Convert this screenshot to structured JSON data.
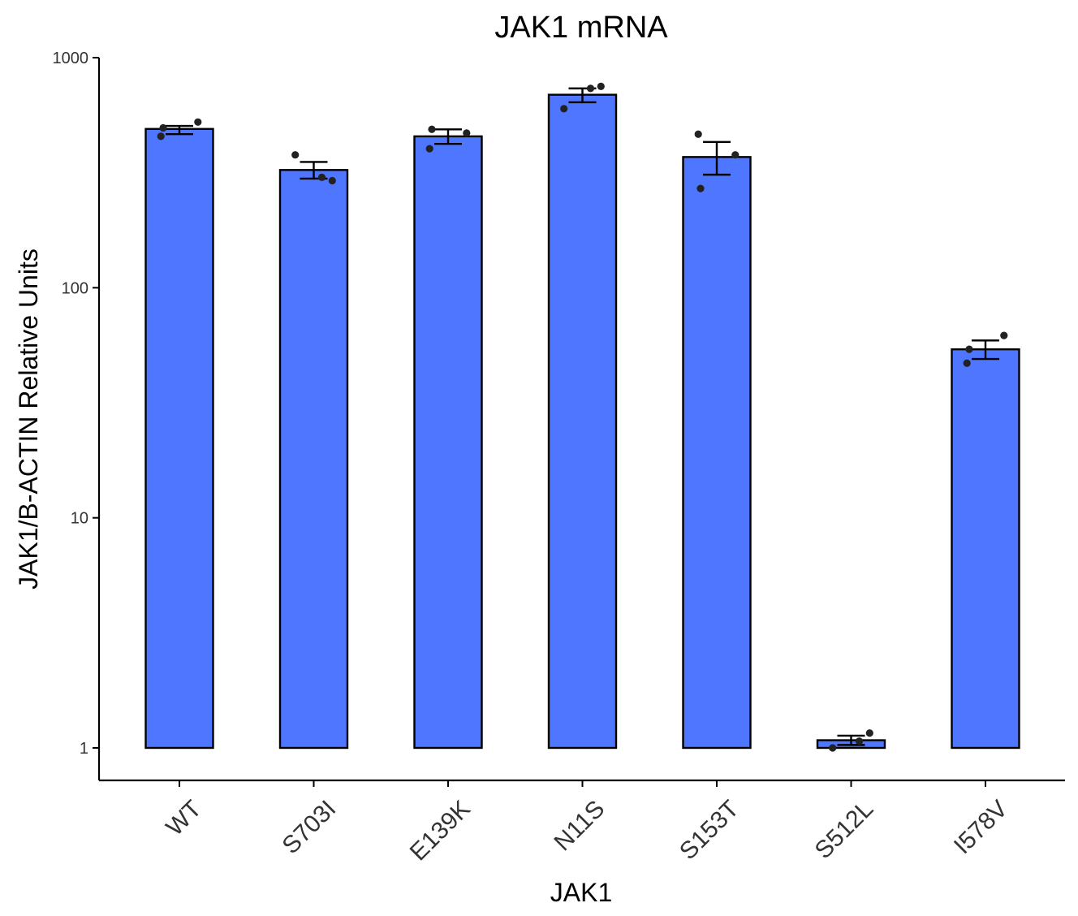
{
  "chart_data": {
    "type": "bar",
    "title": "JAK1 mRNA",
    "xlabel": "JAK1",
    "ylabel": "JAK1/B-ACTIN Relative Units",
    "yscale": "log10",
    "ylim": [
      0.7,
      1000
    ],
    "yticks": [
      {
        "value": 1,
        "label": "1"
      },
      {
        "value": 10,
        "label": "10"
      },
      {
        "value": 100,
        "label": "100"
      },
      {
        "value": 1000,
        "label": "1000"
      }
    ],
    "categories": [
      "WT",
      "S703I",
      "E139K",
      "N11S",
      "S153T",
      "S512L",
      "I578V"
    ],
    "values": [
      490,
      325,
      455,
      690,
      370,
      1.08,
      54
    ],
    "error_low": [
      465,
      298,
      422,
      640,
      310,
      1.03,
      49
    ],
    "error_high": [
      505,
      352,
      488,
      735,
      430,
      1.13,
      59
    ],
    "points": [
      [
        455,
        495,
        525
      ],
      [
        378,
        302,
        292
      ],
      [
        402,
        488,
        470
      ],
      [
        600,
        735,
        750
      ],
      [
        465,
        270,
        378
      ],
      [
        1.0,
        1.07,
        1.16
      ],
      [
        47,
        54,
        62
      ]
    ],
    "colors": {
      "bar_fill": "#4f76ff",
      "bar_stroke": "#000000",
      "point": "#222222",
      "axis": "#000000"
    },
    "grid": false,
    "legend": "none"
  }
}
